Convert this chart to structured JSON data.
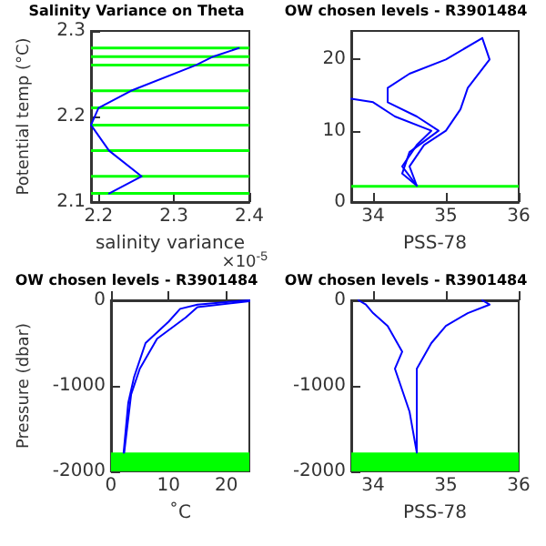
{
  "chart_data": [
    {
      "type": "line",
      "title": "Salinity Variance on Theta",
      "xlabel": "salinity variance",
      "ylabel": "Potential temp (°C)",
      "annotations": [
        "×10$^{-5}$"
      ],
      "xlim": [
        2.19,
        2.4
      ],
      "xticks": [
        2.2,
        2.3,
        2.4
      ],
      "ylim": [
        2.1,
        2.3
      ],
      "yticks": [
        2.1,
        2.2,
        2.3
      ],
      "grid": false,
      "marker": "none",
      "series": [
        {
          "color": "#0000ff",
          "x": [
            2.214,
            2.257,
            2.214,
            2.19,
            2.2,
            2.243,
            2.329,
            2.352,
            2.386
          ],
          "values": [
            2.11,
            2.13,
            2.16,
            2.19,
            2.21,
            2.23,
            2.26,
            2.27,
            2.28
          ]
        }
      ],
      "ref_lines": [
        {
          "axis": "y",
          "value": 2.11,
          "color": "#00ff00"
        },
        {
          "axis": "y",
          "value": 2.13,
          "color": "#00ff00"
        },
        {
          "axis": "y",
          "value": 2.16,
          "color": "#00ff00"
        },
        {
          "axis": "y",
          "value": 2.19,
          "color": "#00ff00"
        },
        {
          "axis": "y",
          "value": 2.21,
          "color": "#00ff00"
        },
        {
          "axis": "y",
          "value": 2.23,
          "color": "#00ff00"
        },
        {
          "axis": "y",
          "value": 2.26,
          "color": "#00ff00"
        },
        {
          "axis": "y",
          "value": 2.27,
          "color": "#00ff00"
        },
        {
          "axis": "y",
          "value": 2.28,
          "color": "#00ff00"
        }
      ]
    },
    {
      "type": "line",
      "title": "OW chosen levels - R3901484",
      "xlabel": "PSS-78",
      "xlim": [
        33.7,
        36
      ],
      "xticks": [
        34,
        35,
        36
      ],
      "ylim": [
        0,
        24
      ],
      "yticks": [
        0,
        10,
        20
      ],
      "grid": false,
      "marker": "none",
      "series": [
        {
          "color": "#0000ff",
          "x": [
            34.6,
            34.4,
            34.5,
            34.9,
            34.6,
            34.2,
            34.2,
            34.5,
            35.0,
            35.5
          ],
          "values": [
            2.3,
            4,
            7,
            10,
            12,
            14,
            16,
            18,
            20,
            23
          ]
        },
        {
          "color": "#0000ff",
          "x": [
            34.6,
            34.5,
            34.7,
            35.0,
            35.2,
            35.3,
            35.6,
            35.5
          ],
          "values": [
            2.3,
            5,
            8,
            10,
            13,
            16,
            20,
            23
          ]
        },
        {
          "color": "#0000ff",
          "x": [
            34.6,
            34.4,
            34.6,
            34.8,
            34.3,
            34.0,
            33.7
          ],
          "values": [
            2.3,
            5,
            8,
            10,
            12,
            14,
            14.5
          ]
        }
      ],
      "ref_lines": [
        {
          "axis": "y",
          "value": 2.2,
          "color": "#00ff00"
        }
      ]
    },
    {
      "type": "line",
      "title": "OW chosen levels - R3901484",
      "xlabel": "˚C",
      "ylabel": "Pressure (dbar)",
      "xlim": [
        0,
        24
      ],
      "xticks": [
        0,
        10,
        20
      ],
      "ylim": [
        -2000,
        0
      ],
      "yticks": [
        -2000,
        -1000,
        0
      ],
      "grid": false,
      "marker": "none",
      "series": [
        {
          "color": "#0000ff",
          "x": [
            2.2,
            3,
            4,
            6,
            10,
            12,
            15,
            20,
            24
          ],
          "values": [
            -1780,
            -1200,
            -900,
            -500,
            -250,
            -100,
            -50,
            -20,
            0
          ]
        },
        {
          "color": "#0000ff",
          "x": [
            2.3,
            3.5,
            5,
            8,
            13,
            15,
            24
          ],
          "values": [
            -1780,
            -1100,
            -800,
            -450,
            -200,
            -80,
            -10
          ]
        }
      ],
      "bands": [
        {
          "axis": "y",
          "from": -2000,
          "to": -1780,
          "color": "#00ff00"
        }
      ]
    },
    {
      "type": "line",
      "title": "OW chosen levels - R3901484",
      "xlabel": "PSS-78",
      "xlim": [
        33.7,
        36
      ],
      "xticks": [
        34,
        35,
        36
      ],
      "ylim": [
        -2000,
        0
      ],
      "yticks": [
        -2000,
        -1000,
        0
      ],
      "grid": false,
      "marker": "none",
      "series": [
        {
          "color": "#0000ff",
          "x": [
            34.6,
            34.5,
            34.3,
            34.4,
            34.2,
            34.0,
            33.9,
            33.8
          ],
          "values": [
            -1780,
            -1300,
            -800,
            -600,
            -300,
            -150,
            -50,
            0
          ]
        },
        {
          "color": "#0000ff",
          "x": [
            34.6,
            34.6,
            34.6,
            34.8,
            35.0,
            35.3,
            35.6,
            35.5
          ],
          "values": [
            -1780,
            -1200,
            -800,
            -500,
            -300,
            -150,
            -50,
            0
          ]
        }
      ],
      "bands": [
        {
          "axis": "y",
          "from": -2000,
          "to": -1780,
          "color": "#00ff00"
        }
      ]
    }
  ]
}
